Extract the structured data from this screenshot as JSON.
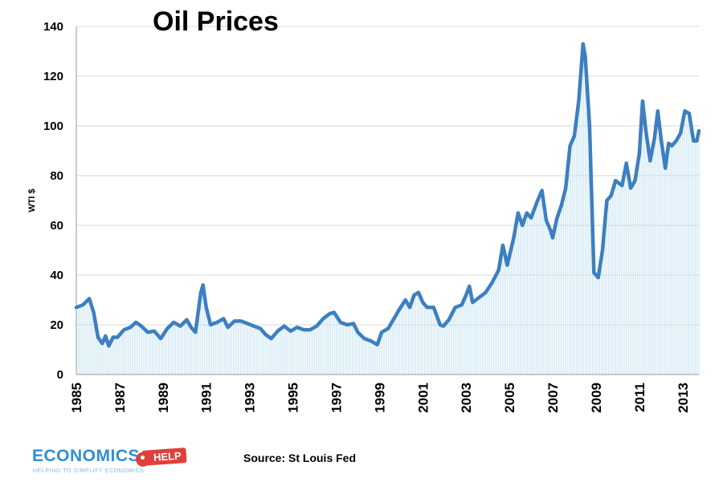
{
  "chart_data": {
    "type": "area",
    "title": "Oil Prices",
    "xlabel": "",
    "ylabel": "WTI $",
    "ylim": [
      0,
      140
    ],
    "xlim": [
      1985.0,
      2013.75
    ],
    "yticks": [
      "0",
      "20",
      "40",
      "60",
      "80",
      "100",
      "120",
      "140"
    ],
    "xticks": [
      "1985",
      "1987",
      "1989",
      "1991",
      "1993",
      "1995",
      "1997",
      "1999",
      "2001",
      "2003",
      "2005",
      "2007",
      "2009",
      "2011",
      "2013"
    ],
    "grid": true,
    "series": [
      {
        "name": "WTI $",
        "x": [
          1985.0,
          1985.3,
          1985.6,
          1985.8,
          1986.0,
          1986.2,
          1986.35,
          1986.5,
          1986.7,
          1986.9,
          1987.2,
          1987.5,
          1987.75,
          1988.0,
          1988.3,
          1988.6,
          1988.9,
          1989.2,
          1989.5,
          1989.8,
          1990.1,
          1990.3,
          1990.5,
          1990.75,
          1990.85,
          1991.0,
          1991.2,
          1991.5,
          1991.8,
          1992.0,
          1992.3,
          1992.6,
          1992.9,
          1993.2,
          1993.5,
          1993.75,
          1994.0,
          1994.3,
          1994.6,
          1994.9,
          1995.2,
          1995.5,
          1995.8,
          1996.1,
          1996.4,
          1996.7,
          1996.9,
          1997.2,
          1997.5,
          1997.8,
          1998.0,
          1998.3,
          1998.6,
          1998.9,
          1999.1,
          1999.4,
          1999.7,
          1999.9,
          2000.2,
          2000.4,
          2000.6,
          2000.8,
          2001.0,
          2001.2,
          2001.5,
          2001.8,
          2001.95,
          2002.2,
          2002.5,
          2002.8,
          2003.0,
          2003.15,
          2003.3,
          2003.6,
          2003.9,
          2004.2,
          2004.5,
          2004.7,
          2004.9,
          2005.2,
          2005.4,
          2005.6,
          2005.8,
          2006.0,
          2006.3,
          2006.5,
          2006.7,
          2006.9,
          2007.0,
          2007.2,
          2007.4,
          2007.6,
          2007.8,
          2008.0,
          2008.2,
          2008.4,
          2008.5,
          2008.7,
          2008.9,
          2009.1,
          2009.3,
          2009.5,
          2009.7,
          2009.9,
          2010.2,
          2010.4,
          2010.6,
          2010.8,
          2011.0,
          2011.15,
          2011.3,
          2011.5,
          2011.7,
          2011.85,
          2012.0,
          2012.2,
          2012.35,
          2012.5,
          2012.7,
          2012.9,
          2013.1,
          2013.3,
          2013.5,
          2013.65,
          2013.75
        ],
        "values": [
          27,
          28,
          30.5,
          25,
          15,
          12.5,
          15.5,
          11.5,
          15,
          15,
          18,
          19,
          21,
          19.5,
          17,
          17.5,
          14.5,
          18.5,
          21,
          19.5,
          22,
          19,
          17,
          33,
          36,
          27,
          20,
          21,
          22.5,
          19,
          21.5,
          21.5,
          20.5,
          19.5,
          18.5,
          16,
          14.5,
          17.5,
          19.5,
          17.5,
          19,
          18,
          18,
          19.5,
          22.5,
          24.5,
          25,
          21,
          20,
          20.5,
          17,
          14.5,
          13.5,
          12,
          17,
          18.5,
          23,
          26,
          30,
          27,
          32,
          33,
          29,
          27,
          27,
          20,
          19.5,
          22,
          27,
          28,
          32,
          35.5,
          29,
          31,
          33,
          37,
          42,
          52,
          44,
          55,
          65,
          60,
          65,
          63,
          70,
          74,
          62,
          58,
          55,
          63,
          68,
          75,
          92,
          96,
          110,
          133,
          128,
          100,
          41,
          39,
          50,
          70,
          72,
          78,
          76,
          85,
          75,
          78,
          89,
          110,
          98,
          86,
          95,
          106,
          95,
          83,
          93,
          92,
          94,
          97,
          106,
          105,
          94,
          94,
          98
        ]
      }
    ]
  },
  "source": "Source: St Louis Fed",
  "logo": {
    "main": "ECONOMICS",
    "badge": "HELP",
    "tagline": "HELPING TO SIMPLIFY ECONOMICS"
  },
  "colors": {
    "line": "#3d7fc1",
    "fill": "#bfe0f0",
    "grid": "#d9d9d9"
  }
}
